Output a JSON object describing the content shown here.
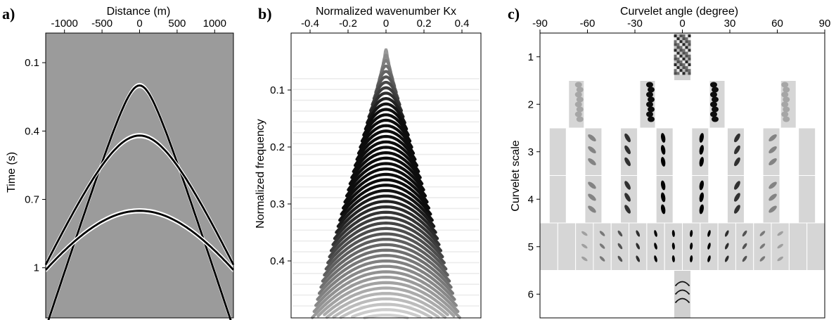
{
  "panels": [
    {
      "label": "a)"
    },
    {
      "label": "b)"
    },
    {
      "label": "c)"
    }
  ],
  "chart_data": [
    {
      "type": "heatmap",
      "panel": "a)",
      "xlabel": "Distance (m)",
      "ylabel": "Time (s)",
      "x_ticks": [
        -1000,
        -500,
        0,
        500,
        1000
      ],
      "y_ticks": [
        0.1,
        0.4,
        0.7,
        1.0
      ],
      "xlim": [
        -1250,
        1250
      ],
      "ylim": [
        -0.03,
        1.22
      ],
      "background_color": "#9b9b9b",
      "series": [
        {
          "type": "hyperbola",
          "t0": 0.2,
          "v": 2000
        },
        {
          "type": "hyperbola",
          "t0": 0.42,
          "v": 2800
        },
        {
          "type": "hyperbola",
          "t0": 0.75,
          "v": 3700
        }
      ]
    },
    {
      "type": "heatmap",
      "panel": "b)",
      "xlabel": "Normalized wavenumber Kx",
      "ylabel": "Normalized frequency",
      "x_ticks": [
        -0.4,
        -0.2,
        0,
        0.2,
        0.4
      ],
      "y_ticks": [
        0.1,
        0.2,
        0.3,
        0.4
      ],
      "xlim": [
        -0.5,
        0.5
      ],
      "ylim": [
        0.0,
        0.5
      ],
      "colormap": "gray_r",
      "apex": [
        0,
        0.02
      ],
      "fringe_spacing": 0.0095
    },
    {
      "type": "heatmap",
      "panel": "c)",
      "xlabel": "Curvelet angle (degree)",
      "ylabel": "Curvelet scale",
      "x_ticks": [
        -90,
        -60,
        -30,
        0,
        30,
        60,
        90
      ],
      "y_ticks": [
        1,
        2,
        3,
        4,
        5,
        6
      ],
      "xlim": [
        -90,
        90
      ],
      "ylim": [
        0.5,
        6.5
      ],
      "scales": [
        {
          "scale": 1,
          "wedges": 1
        },
        {
          "scale": 2,
          "wedges": 4
        },
        {
          "scale": 3,
          "wedges": 8
        },
        {
          "scale": 4,
          "wedges": 8
        },
        {
          "scale": 5,
          "wedges": 16
        },
        {
          "scale": 6,
          "wedges": 1
        }
      ]
    }
  ]
}
